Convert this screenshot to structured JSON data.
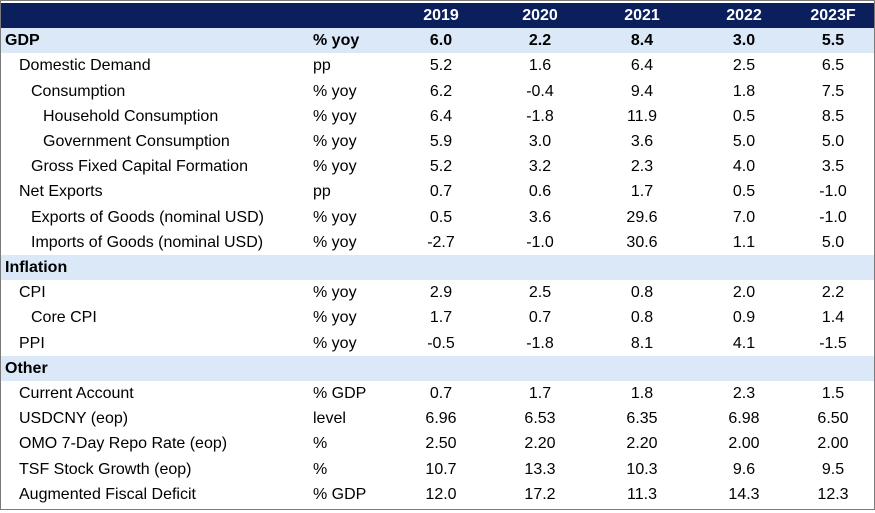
{
  "header": {
    "years": [
      "2019",
      "2020",
      "2021",
      "2022",
      "2023F"
    ]
  },
  "rows": [
    {
      "label": "GDP",
      "unit": "% yoy",
      "values": [
        "6.0",
        "2.2",
        "8.4",
        "3.0",
        "5.5"
      ],
      "type": "section"
    },
    {
      "label": "Domestic Demand",
      "unit": "pp",
      "values": [
        "5.2",
        "1.6",
        "6.4",
        "2.5",
        "6.5"
      ],
      "level": 1
    },
    {
      "label": "Consumption",
      "unit": "% yoy",
      "values": [
        "6.2",
        "-0.4",
        "9.4",
        "1.8",
        "7.5"
      ],
      "level": 2
    },
    {
      "label": "Household Consumption",
      "unit": "% yoy",
      "values": [
        "6.4",
        "-1.8",
        "11.9",
        "0.5",
        "8.5"
      ],
      "level": 3
    },
    {
      "label": "Government Consumption",
      "unit": "% yoy",
      "values": [
        "5.9",
        "3.0",
        "3.6",
        "5.0",
        "5.0"
      ],
      "level": 3
    },
    {
      "label": "Gross Fixed  Capital Formation",
      "unit": "% yoy",
      "values": [
        "5.2",
        "3.2",
        "2.3",
        "4.0",
        "3.5"
      ],
      "level": 2
    },
    {
      "label": "Net Exports",
      "unit": "pp",
      "values": [
        "0.7",
        "0.6",
        "1.7",
        "0.5",
        "-1.0"
      ],
      "level": 1
    },
    {
      "label": "Exports of Goods (nominal USD)",
      "unit": "% yoy",
      "values": [
        "0.5",
        "3.6",
        "29.6",
        "7.0",
        "-1.0"
      ],
      "level": 2
    },
    {
      "label": "Imports of Goods (nominal USD)",
      "unit": "% yoy",
      "values": [
        "-2.7",
        "-1.0",
        "30.6",
        "1.1",
        "5.0"
      ],
      "level": 2
    },
    {
      "label": "Inflation",
      "unit": "",
      "values": [
        "",
        "",
        "",
        "",
        ""
      ],
      "type": "section"
    },
    {
      "label": "CPI",
      "unit": "% yoy",
      "values": [
        "2.9",
        "2.5",
        "0.8",
        "2.0",
        "2.2"
      ],
      "level": 1
    },
    {
      "label": "Core CPI",
      "unit": "% yoy",
      "values": [
        "1.7",
        "0.7",
        "0.8",
        "0.9",
        "1.4"
      ],
      "level": 2
    },
    {
      "label": "PPI",
      "unit": "% yoy",
      "values": [
        "-0.5",
        "-1.8",
        "8.1",
        "4.1",
        "-1.5"
      ],
      "level": 1
    },
    {
      "label": "Other",
      "unit": "",
      "values": [
        "",
        "",
        "",
        "",
        ""
      ],
      "type": "section"
    },
    {
      "label": "Current Account",
      "unit": "% GDP",
      "values": [
        "0.7",
        "1.7",
        "1.8",
        "2.3",
        "1.5"
      ],
      "level": 1
    },
    {
      "label": "USDCNY (eop)",
      "unit": "level",
      "values": [
        "6.96",
        "6.53",
        "6.35",
        "6.98",
        "6.50"
      ],
      "level": 1
    },
    {
      "label": "OMO 7-Day Repo Rate (eop)",
      "unit": "%",
      "values": [
        "2.50",
        "2.20",
        "2.20",
        "2.00",
        "2.00"
      ],
      "level": 1
    },
    {
      "label": "TSF Stock Growth (eop)",
      "unit": "%",
      "values": [
        "10.7",
        "13.3",
        "10.3",
        "9.6",
        "9.5"
      ],
      "level": 1
    },
    {
      "label": "Augmented Fiscal Deficit",
      "unit": "% GDP",
      "values": [
        "12.0",
        "17.2",
        "11.3",
        "14.3",
        "12.3"
      ],
      "level": 1
    }
  ]
}
